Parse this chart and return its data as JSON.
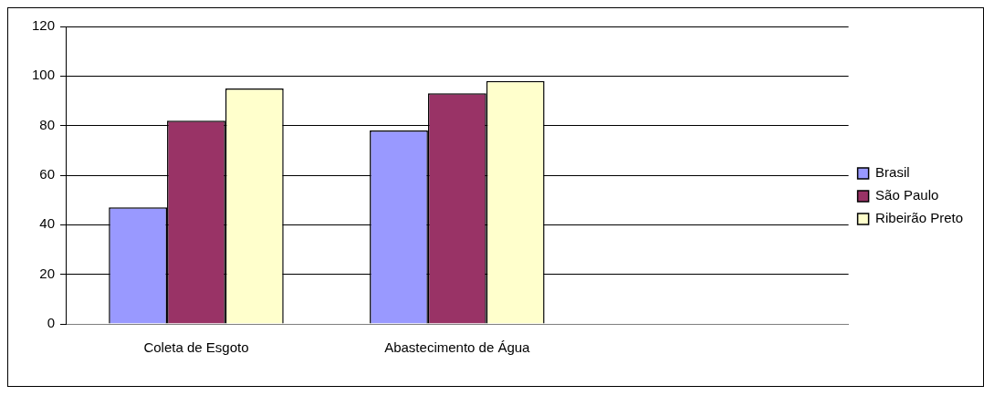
{
  "chart_data": {
    "type": "bar",
    "categories": [
      "Coleta de Esgoto",
      "Abastecimento de Água",
      null
    ],
    "series": [
      {
        "name": "Brasil",
        "color": "#9999ff",
        "values": [
          47,
          78,
          null
        ]
      },
      {
        "name": "São Paulo",
        "color": "#993366",
        "values": [
          82,
          93,
          null
        ]
      },
      {
        "name": "Ribeirão Preto",
        "color": "#ffffcc",
        "values": [
          95,
          98,
          null
        ]
      }
    ],
    "ylim": [
      0,
      120
    ],
    "yticks": [
      0,
      20,
      40,
      60,
      80,
      100,
      120
    ],
    "grid": "y",
    "legend": "right"
  }
}
